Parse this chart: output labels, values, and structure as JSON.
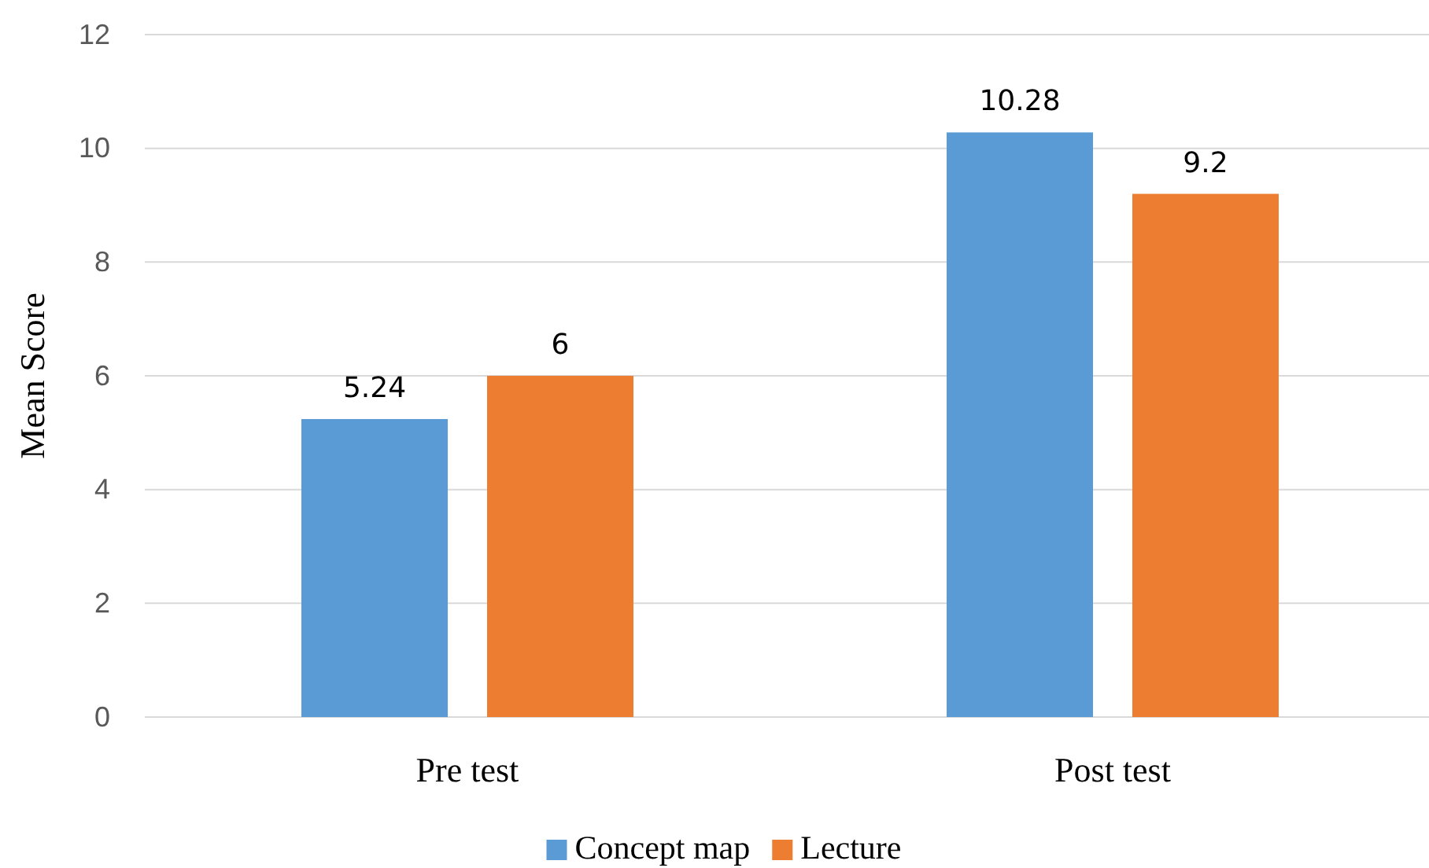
{
  "chart_data": {
    "type": "bar",
    "ylabel": "Mean Score",
    "categories": [
      "Pre test",
      "Post test"
    ],
    "series": [
      {
        "name": "Concept map",
        "color": "#5b9bd5",
        "values": [
          5.24,
          10.28
        ]
      },
      {
        "name": "Lecture",
        "color": "#ed7d31",
        "values": [
          6,
          9.2
        ]
      }
    ],
    "ylim": [
      0,
      12
    ],
    "yticks": [
      0,
      2,
      4,
      6,
      8,
      10,
      12
    ],
    "grid": "y",
    "legend": "bottom",
    "data_labels": true
  }
}
